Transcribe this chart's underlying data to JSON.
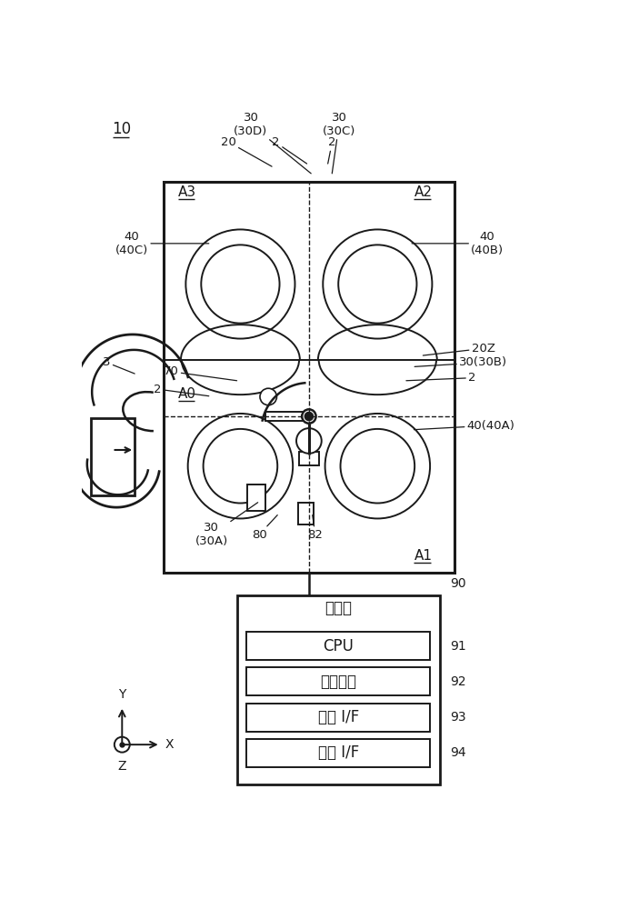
{
  "bg": "#ffffff",
  "lc": "#1a1a1a",
  "fig_w": 7.03,
  "fig_h": 10.0,
  "ctrl_label": "控制部",
  "ctrl_subs": [
    "CPU",
    "存储介质",
    "输入 I/F",
    "输出 I/F"
  ],
  "ctrl_ids": [
    "91",
    "92",
    "93",
    "94"
  ],
  "main_title": "10"
}
